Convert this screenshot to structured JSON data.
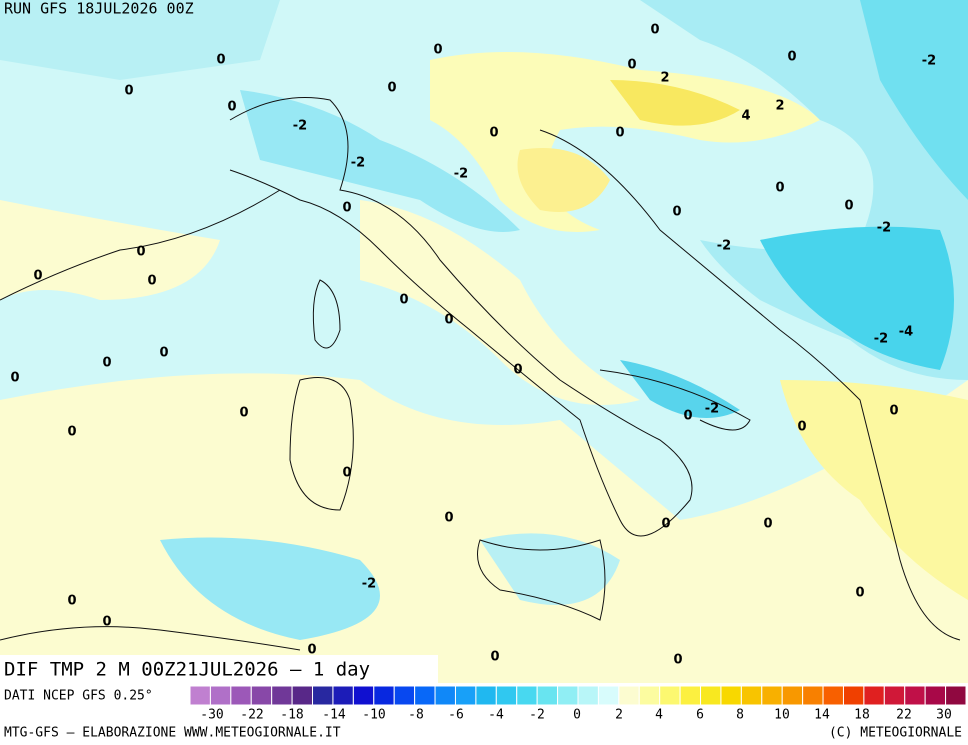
{
  "header": {
    "run": "RUN GFS 18JUL2026 00Z"
  },
  "map": {
    "field": "DIF TMP 2 M 00Z21JUL2026 – 1 day",
    "contour_labels": [
      0,
      0,
      0,
      0,
      2,
      0,
      -2,
      0,
      0,
      0,
      4,
      2,
      -2,
      0,
      0,
      -2,
      -2,
      0,
      0,
      0,
      0,
      -2,
      -2,
      0,
      0,
      0,
      0,
      0,
      -4,
      -2,
      0,
      0,
      0,
      0,
      -2,
      0,
      0,
      0,
      0,
      0,
      0,
      0,
      0,
      0,
      -2,
      0,
      0,
      0,
      0,
      0,
      0
    ]
  },
  "colorbar": {
    "source": "DATI NCEP GFS 0.25°",
    "ticks": [
      -30,
      -22,
      -18,
      -14,
      -10,
      -8,
      -6,
      -4,
      -2,
      0,
      2,
      4,
      6,
      8,
      10,
      14,
      18,
      22,
      30
    ],
    "colors": [
      "#c080d0",
      "#b070c8",
      "#9c58b8",
      "#8848a8",
      "#703898",
      "#582888",
      "#2828a0",
      "#1c1cb8",
      "#1010d0",
      "#0828e0",
      "#0848f0",
      "#0868f8",
      "#1088f8",
      "#18a0f8",
      "#20b8f0",
      "#30c8f0",
      "#48d8f0",
      "#68e4f0",
      "#90eef4",
      "#b8f6f8",
      "#d8fcfc",
      "#fcfcd0",
      "#fcfca0",
      "#fcf870",
      "#fcf040",
      "#f8e820",
      "#f8d800",
      "#f8c400",
      "#f8b000",
      "#f89800",
      "#f88000",
      "#f86000",
      "#f04000",
      "#e02020",
      "#d01838",
      "#c01048",
      "#a80848",
      "#900840"
    ]
  },
  "footer": {
    "credit": "MTG-GFS – ELABORAZIONE WWW.METEOGIORNALE.IT",
    "copyright": "(C) METEOGIORNALE"
  }
}
